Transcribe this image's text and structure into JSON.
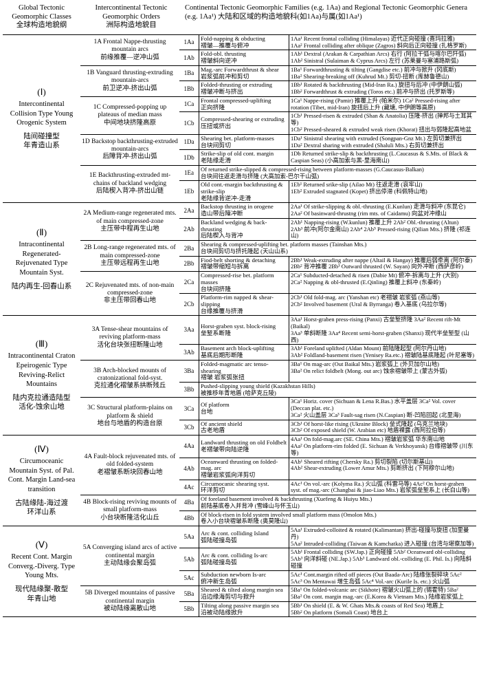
{
  "header": {
    "col1_en": "Global Tectonic Geomorphic Classes",
    "col1_cn": "全球构造地貌纲",
    "col2_en": "Intercontinental Tectonic Geomorphic Orders",
    "col2_cn": "洲际构造地貌目",
    "col3_en": "Continental Tectonic Geomorphic Families (e.g. 1Aa) and Regional Tectonic Geomorphic Genera (e.g. 1Aa¹) 大陆和区域的构造地貌科(如1Aa)与属(如1Aa¹)"
  },
  "sections": [
    {
      "roman": "(Ⅰ)",
      "title_en": "Intercontinental Collision Type Young Orogenic System",
      "title_cn": "陆间碰撞型\n年青造山系",
      "orders": [
        {
          "code": "1A",
          "en": "Frontal Nappe-thrusting mountain arcs",
          "cn": "前缘推覆—逆冲山弧",
          "families": [
            {
              "c": "1Aa",
              "en": "Fold-napping & obducting",
              "cn": "褶皱—推覆与俯冲",
              "g": "1Aa¹ Recent frontal colliding (Himalayas)  近代正向碰撞 (喜玛拉雅)\n1Aa² Frontal colliding after oblique (Zagros)  斜向后正向碰撞 (扎格罗斯)"
            },
            {
              "c": "1Ab",
              "en": "Fold-obl. thrusting",
              "cn": "褶皱斜向逆冲",
              "g": "1Ab¹ Dextral (Arakan & Carpathian Arcs)  右行 (阿拉干弧与喀尔巴阡弧)\n1Ab² Sinistral (Sulaiman & Cyprus Arcs)  左行 (苏莱曼与塞浦路斯弧)"
            }
          ]
        },
        {
          "code": "1B",
          "en": "Vanguard thrusting-extruding mountain-arcs",
          "cn": "前卫逆冲-挤出山弧",
          "families": [
            {
              "c": "1Ba",
              "en": "Mag.-arc Forwardthrust & shear",
              "cn": "岩浆弧前冲和剪切",
              "g": "1Ba¹ Forwardthrusting & tilting (Gangdise etc.)  前冲与掀升 (冈底斯)\n1Ba² Shearing-breaking off (Kuhrud Mt.)  剪切-扭断 (库赫鲁德山)"
            },
            {
              "c": "1Bb",
              "en": "Folded-thrusting or extruding",
              "cn": "褶皱冲断与挤出",
              "g": "1Bb¹ Rotated & backthrusting (Mid-Iran Ra.)  旋扭与后冲 (中伊朗山弧)\n1Bb² Forwardthrust & extruding (Toros etc.)  前冲与挤出 (托罗斯等)"
            }
          ]
        },
        {
          "code": "1C",
          "en": "Compressed-popping up plateaus of median mass",
          "cn": "中间地块挤隆高原",
          "families": [
            {
              "c": "1Ca",
              "en": "Frontal compressed-uplifting",
              "cn": "正向挤隆",
              "g": "1Ca¹ Nappe-rising (Pamir) 推覆上升 (帕米尔)  1Ca² Pressed-rising after rotation (Tibet, mid-Iran)  旋扭后上升 (藏塘, 中伊朗等高原)"
            },
            {
              "c": "1Cb",
              "en": "Compressed-shearing or extruding",
              "cn": "压扭或挤出",
              "g": "1Cb¹ Pressed-risen & extruded (Shan & Anatolia) 压隆-挤出 (掸邦与土耳其等)\n1Cb² Pressed-sheared & extruded weak risen (Khorat)  扭出与弱隆起高地盆"
            }
          ]
        },
        {
          "code": "1D",
          "en": "Backstop backthrusting-extruded mountain-arcs",
          "cn": "后障背冲-挤出山弧",
          "families": [
            {
              "c": "1Da",
              "en": "Shearing bet. platform-masses",
              "cn": "台块间剪切",
              "g": "1Da¹ Sinistral shearing with extruded (Songpan-Gnz Mt.)  左剪切兼挤出\n1Da² Dextral sharing with extruded (Shaluli Mts.)  右剪切兼挤出"
            },
            {
              "c": "1Db",
              "en": "Strike-slip of old cont. margin",
              "cn": "老陆缘走滑",
              "g": "1Db  Returned strike-slip & backthrusting (L.Caucasus & S.Mts. of Black & Caspian Seas)  (小高加索与黑-里海南山)"
            }
          ]
        },
        {
          "code": "1E",
          "en": "Backthrusting-extruded mt-chains of backland wedging",
          "cn": "后陆楔入背冲-挤出山链",
          "families": [
            {
              "c": "1Ea",
              "en": "Of returned strike-slipped & compressed-rising between platform-masses (G.Caucasus-Balkan)",
              "cn": "台块间往返走滑与挤隆  (大高加索-巴尔干山弧)",
              "g": ""
            },
            {
              "c": "1Eb",
              "en": "Old cont.-margin backthrusting & strike-slip",
              "cn": "老陆缘背逆冲-走滑",
              "g": "1Eb¹ Returned srike-slip (Ailao Mt)  往返走滑 (哀牢山)\n1Eb² Extruded stagnated (Kopet)  挤出停滞 (科佩特山地)"
            }
          ]
        }
      ]
    },
    {
      "roman": "(Ⅱ)",
      "title_en": "Intracontinental Regenerated-Rejuvenated Type Mountain Syst.",
      "title_cn": "陆内再生-回春山系",
      "orders": [
        {
          "code": "2A",
          "en": "Medium-range regenerated mts. of main compressed-zone",
          "cn": "主压带中程再生山地",
          "families": [
            {
              "c": "2Aa",
              "en": "Backstop thrusting in orogene",
              "cn": "造山带后障冲断",
              "g": "2Aa¹ Of strike-slipping & obl.-thrusting (E.Kunlun) 走滑与斜冲 (东昆仑)\n2Aa² Of basinward-thrustng (rim mts. of Caidamu)  向盆对冲缘山"
            },
            {
              "c": "2Ab",
              "en": "Backland wedging & back-thrusting",
              "cn": "后陆楔入与背冲",
              "g": "2Ab¹ Napping-rising (W.kunlun) 推覆上升  2Ab² Obl.-thrusting (Altun)\n2Ab³ 前冲(阿尔金南山)  2Ab⁴ 2Ab⁵ Pressed-rising (Qilian Mts.) 挤隆 (祁连山)"
            }
          ]
        },
        {
          "code": "2B",
          "en": "Long-range regenerated mts. of main compressed-zone",
          "cn": "主压带远程再生山地",
          "families": [
            {
              "c": "2Ba",
              "en": "Shearing & compressed-uplifting bet. platform masses (Tainshan Mts.)",
              "cn": "台块间剪切与挤托隆起  (天山山系)",
              "g": ""
            },
            {
              "c": "2Bb",
              "en": "Fiod-belt shorting & detaching",
              "cn": "褶皱带缩短与拆离",
              "g": "2Bb¹ Weak-extruding after nappe (Altail & Hangay) 推覆后弱牵离 (阿尔泰)\n2Bb² 背冲推覆  2Bb³ Outward thrusted (W. Sayan) 向外冲断 (西萨彦岭)"
            }
          ]
        },
        {
          "code": "2C",
          "en": "Rejuvenated mts. of non-main compressed-zone",
          "cn": "非主压带回春山地",
          "families": [
            {
              "c": "2Ca",
              "en": "Compressed-rise bet. platform masses",
              "cn": "台块间挤隆",
              "g": "2Ca¹ Subducted-detached & risen (Dabie Mt) 俯冲-拆离与上升 (大别)\n2Ca² Napping & obl-thrusted (E.Qinling)  推覆上斜冲 (东秦岭)"
            },
            {
              "c": "2Cb",
              "en": "Platform-rim napped & shear-slipping",
              "cn": "台缘推覆与挤滑",
              "g": "2Cb¹ Old fold-mag. arc (Yanshan etc) 老褶皱 岩浆弧 (燕山等)\n2Cb² Involved basement (Ural & Byrranga)  卷入基底 (乌拉尔等)"
            }
          ]
        }
      ]
    },
    {
      "roman": "(Ⅲ)",
      "title_en": "Intracontinental Craton Epeirogenic Type Reviving-Relict Mountains",
      "title_cn": "陆内克拉通造陆型\n活化-蚀余山地",
      "orders": [
        {
          "code": "3A",
          "en": "Tense-shear mountains of reviving platform-mass",
          "cn": "活化台块张扭断隆山地",
          "families": [
            {
              "c": "3Aa",
              "en": "Horst-graben syst. block-rising",
              "cn": "垒堑系断隆",
              "g": "3Aa¹ Horst-graben press-rising (Panxi) 古垒堑挤隆  3Aa² Recent rift-Mt (Baikal)\n3Aa³ 单斜断隆  3Aa⁴ Recent semi-horst-graben (Shanxi)  现代半垒堑型 (山西)"
            },
            {
              "c": "3Ab",
              "en": "Basement arch block-uplifting",
              "cn": "基底后期形断隆",
              "g": "3Ab¹ Foreland uplifted (Aldan Mount)  前陆隆起型 (阿尔丹山地)\n3Ab² Foldland-basement risen (Yenisey Ra.etc.)  褶皱陆基底隆起 (叶尼塞等)"
            }
          ]
        },
        {
          "code": "3B",
          "en": "Arch-blocked mounts of cratonizational fold-syst.",
          "cn": "克拉通化褶皱系拱断残丘",
          "families": [
            {
              "c": "3Ba",
              "en": "Folded-magmatic arc tenso-shearing",
              "cn": "褶皱 岩浆弧张扭",
              "g": "3Ba¹ On mag-arc (Out Baikal Mts.) 岩浆弧上 (外贝加尔山地)\n3Ba² On relict foldbelt (Mong. out arc)  蚀余褶皱带上 (蒙古外弧)"
            },
            {
              "c": "3Bb",
              "en": "Pushed-slipping young shield (Kazakhstan Hills)",
              "cn": "被推移年青地盾  (哈萨克丘陵)",
              "g": ""
            }
          ]
        },
        {
          "code": "3C",
          "en": "Structural platform-plains on platform & shield",
          "cn": "地台与地盾的构造台原",
          "families": [
            {
              "c": "3Ca",
              "en": "Of platform",
              "cn": "台地",
              "g": "3Ca¹ Horiz. cover (Sichuan & Lena R.Bas.) 水平盖层  3Ca² Vol. cover (Deccan plat. etc.)\n3Ca² 火山盖层  3Ca³ Fault-sag risen (N.Caspian)  断-凹陷回起 (北里海)"
            },
            {
              "c": "3Cb",
              "en": "Of ancient shield",
              "cn": "古老地盾",
              "g": "3Cb¹ Of horst-like rising (Ukraine Block)  垒式隆起 (乌克兰地块)\n3Cb² Of exposed shield (W. Arabian etc)  地盾裸露 (西阿拉伯等)"
            }
          ]
        }
      ]
    },
    {
      "roman": "(Ⅳ)",
      "title_en": "Circumoceanic Mountain Syst. of Pal. Cont. Margin Land-sea transition",
      "title_cn": "古陆缘陆-海过渡\n环洋山系",
      "orders": [
        {
          "code": "4A",
          "en": "Fault-block rejuvenated mts. of old folded-system",
          "cn": "老褶皱系断块回春山地",
          "families": [
            {
              "c": "4Aa",
              "en": "Landward thrusting on old Foldbelt",
              "cn": "老褶皱带向陆逆隆",
              "g": "4Aa¹ On fold-mag.arc (SE. China Mts.)  褶皱岩浆弧 华东南山地\n4Aa² On platform-rim folded (E. Sichuan & Verkhoyansk) 台缘褶皱带 (川东等)"
            },
            {
              "c": "4Ab",
              "en": "Oceanward thrusting on folded-mag. arc",
              "cn": "褶皱岩浆弧向洋剪切",
              "g": "4Ab¹ Sheared rifting (Chersky Ra.)  剪切裂陷 (切尔斯基山)\n4Ab² Shear-extruding (Lower Amur Mts.) 剪断挤出 (下阿穆尔山地)"
            },
            {
              "c": "4Ac",
              "en": "Circumocanic shearing syst.",
              "cn": "环洋剪切",
              "g": "4Ac¹ On vol.-arc (Kolyma Ra.) 火山弧 (科雷马等)  4Ac² On horst-graben syst. of mag.-arc (Changbai & jiao-Liao Mts.)  岩浆弧垒堑系上 (长白山等)"
            }
          ]
        },
        {
          "code": "4B",
          "en": "Block-rising reviving mounts of small platform-mass",
          "cn": "小台块断隆活化山丘",
          "families": [
            {
              "c": "4Ba",
              "en": "Of foreland basement involved & backthrusting (Xuefeng & Huiyu Mts.)",
              "cn": "前陆基底卷入并背冲  (雪峰山与怀玉山)",
              "g": ""
            },
            {
              "c": "4Bb",
              "en": "Of block-risen in fold system involved small platform mass (Omolon Mts.)",
              "cn": "卷入小台块褶皱系断隆  (奥莫隆山)",
              "g": ""
            }
          ]
        }
      ]
    },
    {
      "roman": "(Ⅴ)",
      "title_en": "Recent Cont. Margin Converg.-Diverg. Type Young Mts.",
      "title_cn": "现代陆缘聚-散型\n年青山地",
      "orders": [
        {
          "code": "5A",
          "en": "Converging island arcs of active continental margin",
          "cn": "主动陆缘会聚岛弧",
          "families": [
            {
              "c": "5Aa",
              "en": "Arc & cont. colliding Island",
              "cn": "弧陆碰撞岛弧",
              "g": "5Aa¹ Extruded-colloited & rotated (Kalimantan) 挤出-碰撞与旋扭 (加里曼丹)\n5Aa² Intruded-colliding (Taiwan & Kamchatka)  进入碰撞 (台湾与堪察加等)"
            },
            {
              "c": "5Ab",
              "en": "Arc & cont. colliding Is-arc",
              "cn": "弧陆碰撞岛弧",
              "g": "5Ab¹ Frontal colliding (SW.Jap.) 正向碰撞  5Ab² Oceanward obl-colliding\n5Ab³ 向洋斜碰 (NE.Jap.)  5Ab³ Landward obl.-colliding (E. Phil. Is.) 向陆斜碰撞"
            },
            {
              "c": "5Ac",
              "en": "Subduction newborn Is-arc",
              "cn": "俯冲新生岛弧",
              "g": "5Ac¹ Cont.margin rifted off pieces (Out Baada-Arc) 陆缘张裂碎块  5Ac²<br>5Ac³ On Mentawai 增生岛弧  5Ac⁴ Vol.-arc (Kurile Is. etc.) 火山弧"
            }
          ]
        },
        {
          "code": "5B",
          "en": "Diverged mountains of passive continental margin",
          "cn": "被动陆缘离散山地",
          "families": [
            {
              "c": "5Ba",
              "en": "Sheared & tilted along margin sea",
              "cn": "沿边缘海剪切与掀升",
              "g": "5Ba¹ On folded-volcanic arc (Sikhote) 褶皱火山弧上的 (锡霍特)  5Ba²<br>5Ba² On cont. margin mag.-arc (E.Korea & Vietnam Mts.)  陆缘岩浆弧上"
            },
            {
              "c": "5Bb",
              "en": "Tilting along passive margin sea",
              "cn": "沿被动陆缘掀升",
              "g": "5Bb¹ On shield (E. & W. Ghats Mts.& coasts of Red Sea)  地盾上\n5Bb² On platform (Somali Coast)  地台上"
            }
          ]
        }
      ]
    }
  ]
}
